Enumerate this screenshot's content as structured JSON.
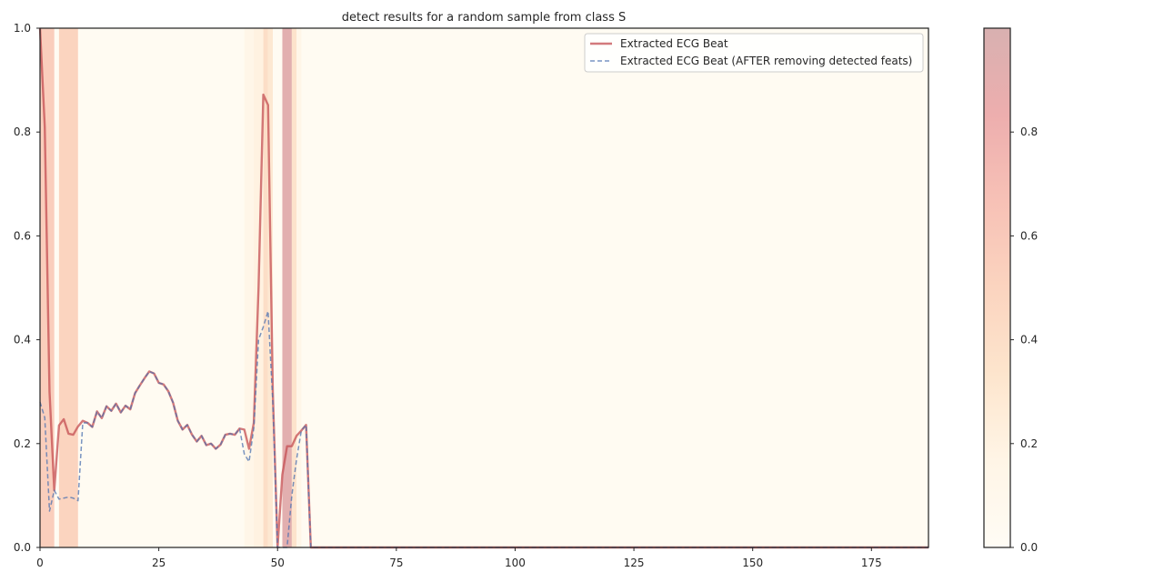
{
  "chart_data": {
    "type": "line",
    "title": "detect results for a random sample from class S",
    "xlabel": "",
    "ylabel": "",
    "xlim": [
      0,
      187
    ],
    "ylim": [
      0,
      1.0
    ],
    "xticks": [
      "0",
      "25",
      "50",
      "75",
      "100",
      "125",
      "150",
      "175"
    ],
    "xtick_values": [
      0,
      25,
      50,
      75,
      100,
      125,
      150,
      175
    ],
    "yticks": [
      "0.0",
      "0.2",
      "0.4",
      "0.6",
      "0.8",
      "1.0"
    ],
    "ytick_values": [
      0,
      0.2,
      0.4,
      0.6,
      0.8,
      1.0
    ],
    "grid": false,
    "legend_position": "top-right",
    "series": [
      {
        "name": "Extracted ECG Beat",
        "color": "#c44e52",
        "style": "solid",
        "x": [
          0,
          1,
          2,
          3,
          4,
          5,
          6,
          7,
          8,
          9,
          10,
          11,
          12,
          13,
          14,
          15,
          16,
          17,
          18,
          19,
          20,
          21,
          22,
          23,
          24,
          25,
          26,
          27,
          28,
          29,
          30,
          31,
          32,
          33,
          34,
          35,
          36,
          37,
          38,
          39,
          40,
          41,
          42,
          43,
          44,
          45,
          46,
          47,
          48,
          49,
          50,
          51,
          52,
          53,
          54,
          55,
          56,
          57,
          187
        ],
        "y": [
          1.0,
          0.81,
          0.3,
          0.11,
          0.235,
          0.247,
          0.219,
          0.217,
          0.233,
          0.244,
          0.24,
          0.232,
          0.262,
          0.249,
          0.272,
          0.263,
          0.277,
          0.26,
          0.273,
          0.266,
          0.297,
          0.312,
          0.326,
          0.339,
          0.335,
          0.317,
          0.314,
          0.301,
          0.279,
          0.244,
          0.227,
          0.236,
          0.217,
          0.204,
          0.215,
          0.197,
          0.2,
          0.19,
          0.198,
          0.217,
          0.219,
          0.217,
          0.229,
          0.227,
          0.19,
          0.24,
          0.5,
          0.872,
          0.852,
          0.3,
          0.0,
          0.14,
          0.195,
          0.195,
          0.215,
          0.225,
          0.236,
          0.0,
          0.0
        ]
      },
      {
        "name": "Extracted ECG Beat (AFTER removing detected feats)",
        "color": "#4c72b0",
        "style": "dashed",
        "x": [
          0,
          1,
          2,
          3,
          4,
          5,
          6,
          7,
          8,
          9,
          10,
          11,
          12,
          13,
          14,
          15,
          16,
          17,
          18,
          19,
          20,
          21,
          22,
          23,
          24,
          25,
          26,
          27,
          28,
          29,
          30,
          31,
          32,
          33,
          34,
          35,
          36,
          37,
          38,
          39,
          40,
          41,
          42,
          43,
          44,
          45,
          46,
          47,
          48,
          49,
          50,
          51,
          52,
          53,
          54,
          55,
          56,
          57,
          187
        ],
        "y": [
          0.28,
          0.25,
          0.07,
          0.11,
          0.093,
          0.095,
          0.097,
          0.095,
          0.09,
          0.24,
          0.24,
          0.232,
          0.262,
          0.249,
          0.272,
          0.263,
          0.277,
          0.26,
          0.273,
          0.266,
          0.297,
          0.312,
          0.326,
          0.339,
          0.335,
          0.317,
          0.314,
          0.301,
          0.279,
          0.244,
          0.227,
          0.236,
          0.217,
          0.204,
          0.215,
          0.197,
          0.2,
          0.19,
          0.198,
          0.217,
          0.219,
          0.217,
          0.229,
          0.18,
          0.165,
          0.23,
          0.4,
          0.425,
          0.455,
          0.28,
          0.0,
          0.0,
          0.0,
          0.1,
          0.17,
          0.225,
          0.236,
          0.0,
          0.0
        ]
      }
    ],
    "highlight_bands": [
      {
        "x0": 0.0,
        "x1": 3.0,
        "value": 0.55
      },
      {
        "x0": 4.0,
        "x1": 8.0,
        "value": 0.5
      },
      {
        "x0": 43.0,
        "x1": 45.0,
        "value": 0.15
      },
      {
        "x0": 45.0,
        "x1": 47.0,
        "value": 0.2
      },
      {
        "x0": 47.0,
        "x1": 48.0,
        "value": 0.4
      },
      {
        "x0": 48.0,
        "x1": 49.0,
        "value": 0.3
      },
      {
        "x0": 51.0,
        "x1": 53.0,
        "value": 0.92
      },
      {
        "x0": 53.0,
        "x1": 54.0,
        "value": 0.35
      },
      {
        "x0": 54.0,
        "x1": 55.0,
        "value": 0.15
      }
    ],
    "background_value": 0.03,
    "colorbar": {
      "ticks": [
        "0.0",
        "0.2",
        "0.4",
        "0.6",
        "0.8"
      ],
      "tick_values": [
        0,
        0.2,
        0.4,
        0.6,
        0.8
      ],
      "vmin": 0,
      "vmax": 1.0,
      "colormap": "OrRd-like",
      "color_stops": [
        "#fffcf5",
        "#fff5e6",
        "#fde5cd",
        "#fbd4bf",
        "#f7c1b6",
        "#edaeae",
        "#d8b0b0"
      ]
    }
  }
}
